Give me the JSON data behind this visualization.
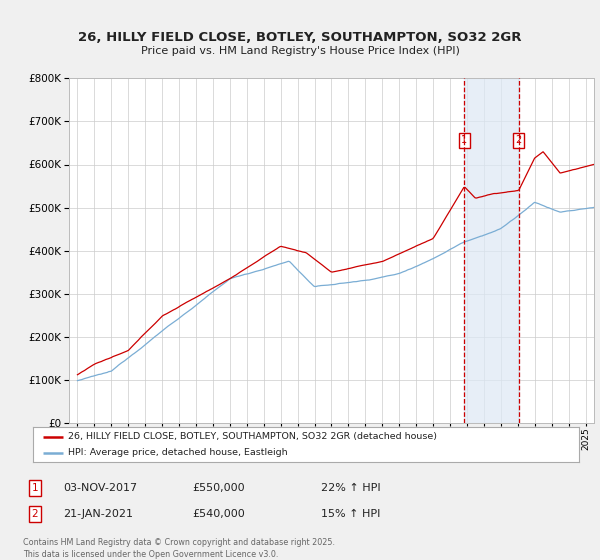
{
  "title": "26, HILLY FIELD CLOSE, BOTLEY, SOUTHAMPTON, SO32 2GR",
  "subtitle": "Price paid vs. HM Land Registry's House Price Index (HPI)",
  "red_label": "26, HILLY FIELD CLOSE, BOTLEY, SOUTHAMPTON, SO32 2GR (detached house)",
  "blue_label": "HPI: Average price, detached house, Eastleigh",
  "annotation1_date": "03-NOV-2017",
  "annotation1_price": "£550,000",
  "annotation1_pct": "22% ↑ HPI",
  "annotation2_date": "21-JAN-2021",
  "annotation2_price": "£540,000",
  "annotation2_pct": "15% ↑ HPI",
  "footer": "Contains HM Land Registry data © Crown copyright and database right 2025.\nThis data is licensed under the Open Government Licence v3.0.",
  "red_color": "#cc0000",
  "blue_color": "#7aadd4",
  "background_color": "#f0f0f0",
  "plot_bg_color": "#ffffff",
  "grid_color": "#cccccc",
  "vline1_x": 2017.84,
  "vline2_x": 2021.05,
  "shade_color": "#dde8f5",
  "ylim": [
    0,
    800000
  ],
  "xlim_start": 1994.5,
  "xlim_end": 2025.5
}
